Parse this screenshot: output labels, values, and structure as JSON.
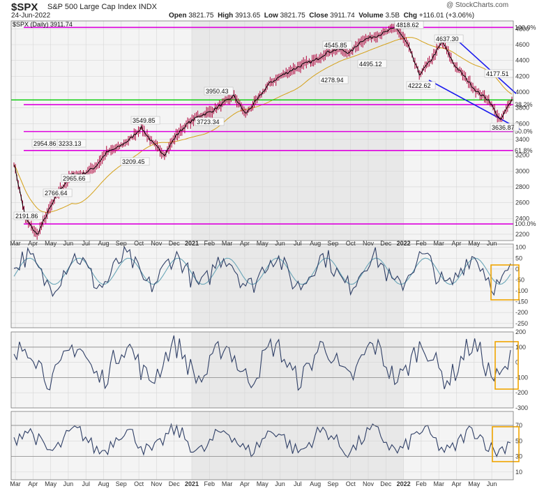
{
  "header": {
    "symbol": "$SPX",
    "name": "S&P 500 Large Cap Index",
    "exchange": "INDX",
    "date": "24-Jun-2022",
    "open_label": "Open",
    "open": "3821.75",
    "high_label": "High",
    "high": "3913.65",
    "low_label": "Low",
    "low": "3821.75",
    "close_label": "Close",
    "close": "3911.74",
    "volume_label": "Volume",
    "volume": "3.5B",
    "chg_label": "Chg",
    "chg": "+116.01 (+3.06%)",
    "source": "@ StockCharts.com",
    "legend": "$SPX (Daily) 3911.74"
  },
  "chart_data": [
    {
      "type": "line",
      "title": "$SPX (Daily) 3911.74",
      "x_ticks": [
        "Mar",
        "Apr",
        "May",
        "Jun",
        "Jul",
        "Aug",
        "Sep",
        "Oct",
        "Nov",
        "Dec",
        "2021",
        "Feb",
        "Mar",
        "Apr",
        "May",
        "Jun",
        "Jul",
        "Aug",
        "Sep",
        "Oct",
        "Nov",
        "Dec",
        "2022",
        "Feb",
        "Mar",
        "Apr",
        "May",
        "Jun"
      ],
      "y_ticks": [
        "2200",
        "2400",
        "2600",
        "2800",
        "3000",
        "3200",
        "3400",
        "3600",
        "3800",
        "4000",
        "4200",
        "4400",
        "4600",
        "4800"
      ],
      "ylim": [
        2120,
        4900
      ],
      "series": [
        {
          "values": [
            3100,
            2400,
            2191.86,
            2500,
            2766.64,
            2954.86,
            2965.66,
            3050,
            3233.13,
            3300,
            3400,
            3549.85,
            3350,
            3209.45,
            3450,
            3600,
            3700,
            3750,
            3850,
            3950.43,
            3723.34,
            3900,
            4100,
            4200,
            4278.94,
            4350,
            4400,
            4500,
            4545.85,
            4495.12,
            4650,
            4700,
            4750,
            4818.62,
            4600,
            4222.62,
            4400,
            4637.3,
            4350,
            4177.51,
            4000,
            3900,
            3636.87,
            3911.74
          ]
        }
      ],
      "annotations": [
        "2191.86",
        "2766.64",
        "2954.86",
        "2965.66",
        "3233.13",
        "3209.45",
        "3549.85",
        "3950.43",
        "3723.34",
        "4278.94",
        "4545.85",
        "4495.12",
        "4222.62",
        "4818.62",
        "4637.30",
        "4177.51",
        "3636.87"
      ],
      "fib_levels": [
        {
          "value": 4818,
          "label": "100.0%"
        },
        {
          "value": 3840,
          "label": "38.2%"
        },
        {
          "value": 3500,
          "label": "50.0%"
        },
        {
          "value": 3260,
          "label": "61.8%"
        },
        {
          "value": 2330,
          "label": "100.0%"
        }
      ],
      "support_level": 3900
    },
    {
      "type": "line",
      "y_ticks": [
        "100",
        "50",
        "0",
        "-50",
        "-100",
        "-150",
        "-200",
        "-250"
      ],
      "ylim": [
        -270,
        115
      ]
    },
    {
      "type": "line",
      "y_ticks": [
        "200",
        "100",
        "0",
        "-100",
        "-200",
        "-300"
      ],
      "ylim": [
        -300,
        200
      ]
    },
    {
      "type": "line",
      "y_ticks": [
        "70",
        "50",
        "30",
        "10"
      ],
      "ylim": [
        0,
        88
      ]
    }
  ],
  "colors": {
    "price": "#000000",
    "down": "#b0003a",
    "fib": "#dd00dd",
    "support": "#00cc00",
    "channel": "#1a1aee",
    "ma": "#d4a017",
    "osc": "#2f3f66",
    "osc_fill": "#8090b0",
    "highlight": "#f0a500",
    "shade": "#e8e8e8"
  }
}
